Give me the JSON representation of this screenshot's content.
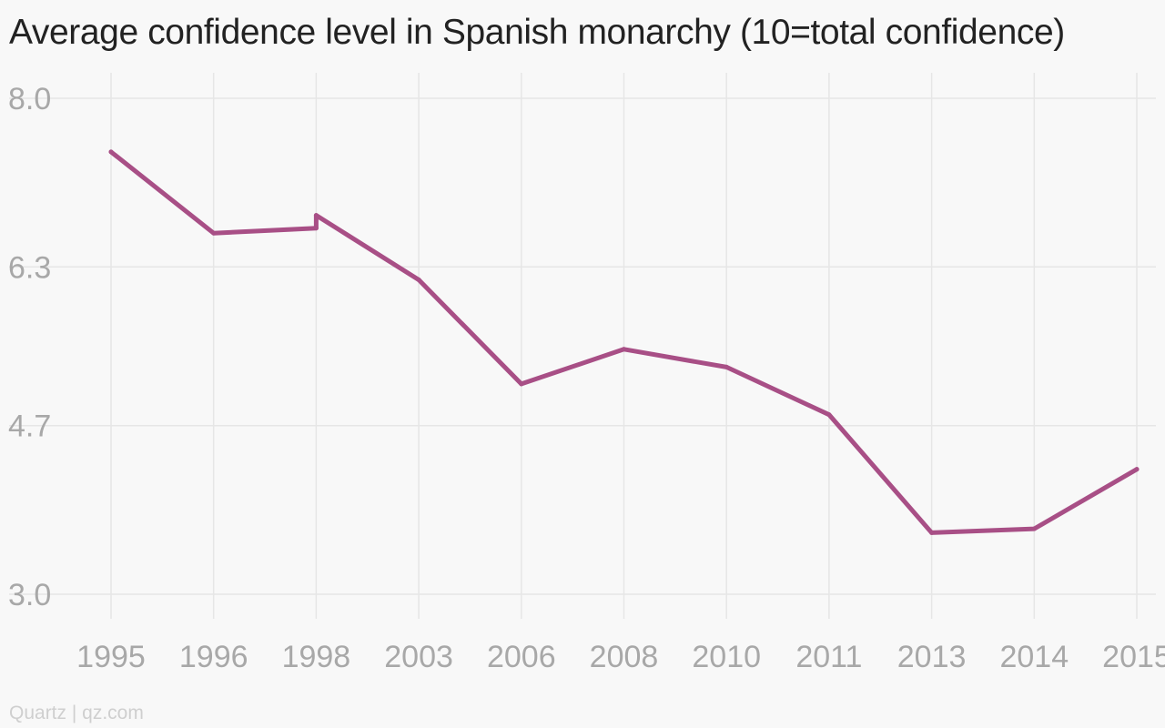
{
  "chart_data": {
    "type": "line",
    "title": "Average confidence level in Spanish monarchy (10=total confidence)",
    "xlabel": "",
    "ylabel": "",
    "categories": [
      "1995",
      "1996",
      "1998",
      "1998",
      "2003",
      "2006",
      "2008",
      "2010",
      "2011",
      "2013",
      "2014",
      "2015"
    ],
    "x_tick_labels": [
      "1995",
      "1996",
      "1998",
      "2003",
      "2006",
      "2008",
      "2010",
      "2011",
      "2013",
      "2014",
      "2015"
    ],
    "series": [
      {
        "values": [
          7.46,
          6.64,
          6.69,
          6.82,
          6.17,
          5.12,
          5.47,
          5.29,
          4.81,
          3.62,
          3.66,
          4.26
        ]
      }
    ],
    "y_ticks": [
      "3.0",
      "4.7",
      "6.3",
      "8.0"
    ],
    "ylim": [
      3.0,
      8.0
    ],
    "grid": true,
    "legend": "none",
    "colors": {
      "line": "#a84f86",
      "grid": "#e6e6e6",
      "tick_text": "#a8a8a8",
      "background": "#f8f8f8"
    }
  },
  "footer": {
    "source": "Quartz | qz.com"
  }
}
